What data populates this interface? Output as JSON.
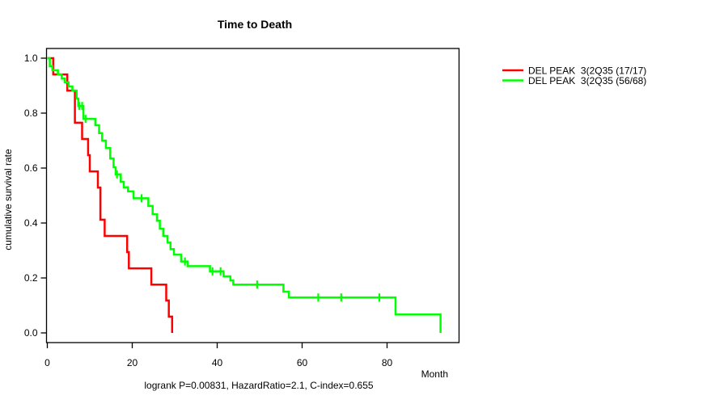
{
  "title": "Time to Death",
  "axes": {
    "x_label": "Month",
    "y_label": "cumulative survival rate",
    "x_ticks": [
      {
        "v": 0,
        "label": "0"
      },
      {
        "v": 20,
        "label": "20"
      },
      {
        "v": 40,
        "label": "40"
      },
      {
        "v": 60,
        "label": "60"
      },
      {
        "v": 80,
        "label": "80"
      }
    ],
    "y_ticks": [
      {
        "v": 0.0,
        "label": "0.0"
      },
      {
        "v": 0.2,
        "label": "0.2"
      },
      {
        "v": 0.4,
        "label": "0.4"
      },
      {
        "v": 0.6,
        "label": "0.6"
      },
      {
        "v": 0.8,
        "label": "0.8"
      },
      {
        "v": 1.0,
        "label": "1.0"
      }
    ]
  },
  "annotation": "logrank P=0.00831, HazardRatio=2.1, C-index=0.655",
  "legend": {
    "items": [
      {
        "label": "DEL PEAK  3(2Q35 (17/17)",
        "color": "#ff0000"
      },
      {
        "label": "DEL PEAK  3(2Q35 (56/68)",
        "color": "#00ff00"
      }
    ]
  },
  "colors": {
    "group1": "#ff0000",
    "group2": "#00ff00",
    "axis": "#000000",
    "background": "#ffffff"
  },
  "chart_data": {
    "type": "line",
    "subtype": "kaplan-meier-step",
    "title": "Time to Death",
    "xlabel": "Month",
    "ylabel": "cumulative survival rate",
    "xlim": [
      0,
      96
    ],
    "ylim": [
      0,
      1.04
    ],
    "x_ticks": [
      0,
      20,
      40,
      60,
      80
    ],
    "y_ticks": [
      0.0,
      0.2,
      0.4,
      0.6,
      0.8,
      1.0
    ],
    "grid": false,
    "legend_position": "outside-top-right",
    "footnote": "logrank P=0.00831, HazardRatio=2.1, C-index=0.655",
    "series": [
      {
        "name": "DEL PEAK  3(2Q35 (17/17)",
        "color": "#ff0000",
        "events_over_total": "17/17",
        "steps": [
          [
            0,
            1.0
          ],
          [
            1.4,
            0.941
          ],
          [
            4.7,
            0.882
          ],
          [
            6.5,
            0.765
          ],
          [
            8.2,
            0.706
          ],
          [
            9.6,
            0.647
          ],
          [
            10.0,
            0.588
          ],
          [
            11.9,
            0.529
          ],
          [
            12.5,
            0.412
          ],
          [
            13.5,
            0.353
          ],
          [
            18.8,
            0.294
          ],
          [
            19.2,
            0.235
          ],
          [
            24.5,
            0.176
          ],
          [
            28.0,
            0.118
          ],
          [
            28.6,
            0.059
          ],
          [
            29.4,
            0.0
          ]
        ],
        "censor_marks": []
      },
      {
        "name": "DEL PEAK  3(2Q35 (56/68)",
        "color": "#00ff00",
        "events_over_total": "56/68",
        "steps": [
          [
            0,
            1.0
          ],
          [
            0.6,
            0.971
          ],
          [
            1.2,
            0.956
          ],
          [
            2.5,
            0.941
          ],
          [
            3.4,
            0.926
          ],
          [
            4.1,
            0.912
          ],
          [
            5.0,
            0.897
          ],
          [
            5.9,
            0.882
          ],
          [
            6.9,
            0.853
          ],
          [
            7.3,
            0.826
          ],
          [
            8.5,
            0.779
          ],
          [
            11.3,
            0.756
          ],
          [
            12.2,
            0.727
          ],
          [
            12.9,
            0.7
          ],
          [
            13.8,
            0.673
          ],
          [
            14.8,
            0.635
          ],
          [
            15.6,
            0.603
          ],
          [
            16.1,
            0.577
          ],
          [
            17.3,
            0.55
          ],
          [
            18.0,
            0.53
          ],
          [
            19.0,
            0.515
          ],
          [
            20.3,
            0.49
          ],
          [
            23.8,
            0.462
          ],
          [
            24.8,
            0.432
          ],
          [
            25.8,
            0.408
          ],
          [
            26.5,
            0.379
          ],
          [
            27.3,
            0.353
          ],
          [
            28.3,
            0.329
          ],
          [
            29.0,
            0.305
          ],
          [
            29.8,
            0.285
          ],
          [
            31.5,
            0.26
          ],
          [
            33.0,
            0.243
          ],
          [
            38.3,
            0.224
          ],
          [
            41.5,
            0.206
          ],
          [
            43.1,
            0.191
          ],
          [
            43.8,
            0.176
          ],
          [
            55.6,
            0.15
          ],
          [
            56.9,
            0.129
          ],
          [
            82.0,
            0.067
          ],
          [
            92.6,
            0.0
          ]
        ],
        "censor_marks": [
          [
            7.5,
            0.826
          ],
          [
            8.2,
            0.826
          ],
          [
            9.0,
            0.779
          ],
          [
            16.4,
            0.577
          ],
          [
            22.2,
            0.49
          ],
          [
            32.4,
            0.26
          ],
          [
            38.9,
            0.224
          ],
          [
            40.8,
            0.224
          ],
          [
            49.4,
            0.176
          ],
          [
            63.8,
            0.129
          ],
          [
            69.2,
            0.129
          ],
          [
            78.2,
            0.129
          ]
        ]
      }
    ]
  }
}
